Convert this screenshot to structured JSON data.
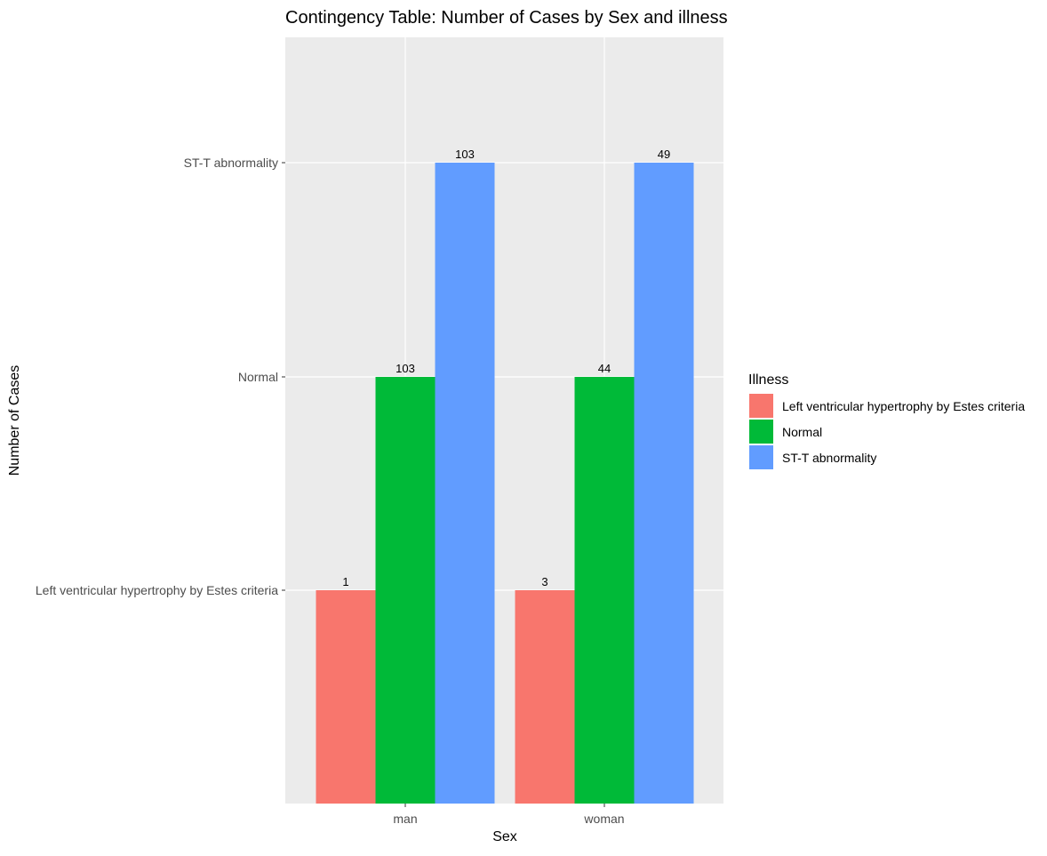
{
  "chart_data": {
    "type": "bar",
    "title": "Contingency Table: Number of Cases by Sex and illness",
    "xlabel": "Sex",
    "ylabel": "Number of Cases",
    "categories": [
      "man",
      "woman"
    ],
    "y_categories": [
      "Left ventricular hypertrophy by Estes criteria",
      "Normal",
      "ST-T abnormality"
    ],
    "series": [
      {
        "name": "Left ventricular hypertrophy by Estes criteria",
        "color": "#f8766d",
        "level": "Left ventricular hypertrophy by Estes criteria",
        "labels": [
          "1",
          "3"
        ]
      },
      {
        "name": "Normal",
        "color": "#00ba38",
        "level": "Normal",
        "labels": [
          "103",
          "44"
        ]
      },
      {
        "name": "ST-T abnormality",
        "color": "#619cff",
        "level": "ST-T abnormality",
        "labels": [
          "103",
          "49"
        ]
      }
    ],
    "legend": {
      "title": "Illness",
      "position": "right"
    },
    "grid": true,
    "panel_background": "#ebebeb",
    "grid_color": "#ffffff"
  }
}
